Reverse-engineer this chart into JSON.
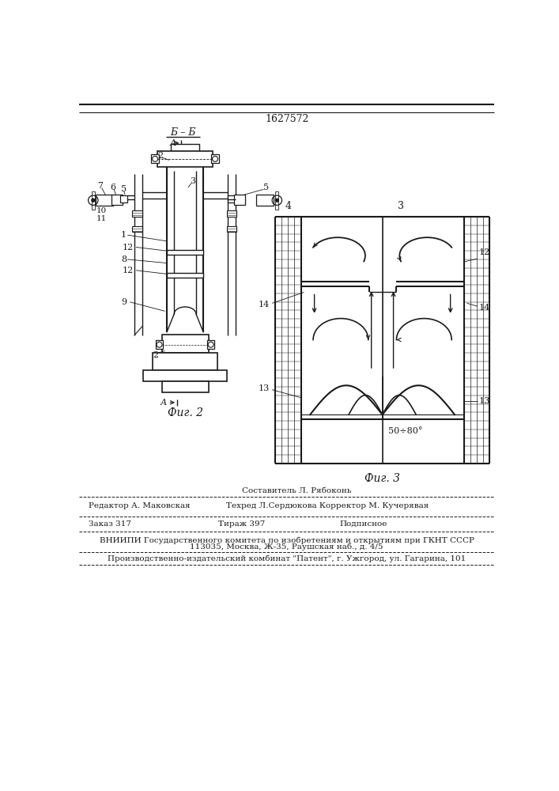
{
  "patent_number": "1627572",
  "bg_color": "#ffffff",
  "line_color": "#1a1a1a",
  "footer_text": {
    "sestavitel": "Составитель Л. Рябоконь",
    "redaktor": "Редактор А. Маковская",
    "tehred": "Техред Л.Сердюкова Корректор М. Кучерявая",
    "zakaz": "Заказ 317",
    "tirazh": "Тираж 397",
    "podpisnoe": "Подписное",
    "vniipи": "ВНИИПИ Государственного комитета по изобретениям и открытиям при ГКНТ СССР",
    "address": "113035, Москва, Ж-35, Раушская наб., д. 4/5",
    "kombinat": "Производственно-издательский комбинат \"Патент\", г. Ужгород, ул. Гагарина, 101"
  }
}
